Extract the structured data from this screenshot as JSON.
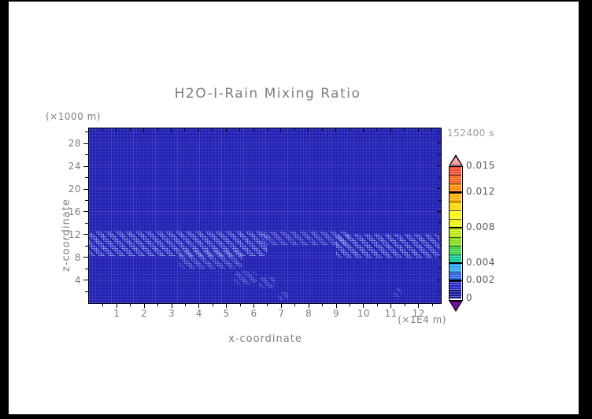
{
  "title": "H2O-I-Rain Mixing Ratio",
  "timestamp": "152400 s",
  "axes": {
    "x_label": "x-coordinate",
    "x_unit": "(×1E4 m)",
    "z_label": "z-coordinate",
    "z_unit": "(×1000 m)"
  },
  "colors": {
    "frame": "#000000",
    "canvas": "#ffffff",
    "field_background": "#2222b5",
    "speckle": "#acb6f0",
    "text_gray": "#7d7d7d"
  },
  "chart_data": {
    "type": "heatmap",
    "title": "H2O-I-Rain Mixing Ratio",
    "time_label": "152400 s",
    "xlabel": "x-coordinate",
    "x_unit": "(×1E4 m)",
    "ylabel": "z-coordinate",
    "z_unit": "(×1000 m)",
    "x_range": [
      0,
      12.8
    ],
    "z_range": [
      0,
      30.6
    ],
    "x_ticks": [
      1,
      2,
      3,
      4,
      5,
      6,
      7,
      8,
      9,
      10,
      11,
      12
    ],
    "x_tick_labels": [
      "1",
      "2",
      "3",
      "4",
      "5",
      "6",
      "7",
      "8",
      "9",
      "10",
      "11",
      "12"
    ],
    "x_minor_ticks": [
      0.5,
      1.5,
      2.5,
      3.5,
      4.5,
      5.5,
      6.5,
      7.5,
      8.5,
      9.5,
      10.5,
      11.5,
      12.5
    ],
    "z_ticks": [
      4,
      8,
      12,
      16,
      20,
      24,
      28
    ],
    "z_tick_labels": [
      "4",
      "8",
      "12",
      "16",
      "20",
      "24",
      "28"
    ],
    "z_minor_ticks": [
      2,
      6,
      10,
      14,
      18,
      22,
      26,
      30
    ],
    "grid": false,
    "field_summary": "Field is almost uniformly in the lowest contour band (0 to 0.001); a speckled trace-rain layer spans all x near z = 8-12.5 (x1000 m), with small trace patches below z = 6 near x = 5.3-7.3 and x = 11.1-11.4 (x1E4 m).",
    "rain_regions": [
      {
        "x": [
          0.0,
          6.5
        ],
        "z": [
          8.1,
          12.4
        ],
        "value_band": "0-0.001",
        "density": "dense"
      },
      {
        "x": [
          3.3,
          5.6
        ],
        "z": [
          5.9,
          9.2
        ],
        "value_band": "0-0.001",
        "density": "medium"
      },
      {
        "x": [
          6.3,
          9.5
        ],
        "z": [
          10.1,
          12.6
        ],
        "value_band": "0-0.001",
        "density": "medium"
      },
      {
        "x": [
          9.0,
          12.8
        ],
        "z": [
          7.9,
          12.1
        ],
        "value_band": "0-0.001",
        "density": "dense"
      },
      {
        "x": [
          5.3,
          6.1
        ],
        "z": [
          3.2,
          5.5
        ],
        "value_band": "0-0.001",
        "density": "light"
      },
      {
        "x": [
          6.2,
          6.8
        ],
        "z": [
          2.5,
          4.6
        ],
        "value_band": "0-0.001",
        "density": "light"
      },
      {
        "x": [
          6.9,
          7.3
        ],
        "z": [
          0.4,
          1.8
        ],
        "value_band": "0-0.001",
        "density": "light"
      },
      {
        "x": [
          11.1,
          11.4
        ],
        "z": [
          1.0,
          2.5
        ],
        "value_band": "0-0.001",
        "density": "light"
      }
    ],
    "colorbar": {
      "min": 0,
      "max": 0.015,
      "level_step": 0.001,
      "tick_values": [
        0.015,
        0.012,
        0.008,
        0.004,
        0.002,
        0
      ],
      "tick_labels": [
        "0.015",
        "0.012",
        "0.008",
        "0.004",
        "0.002",
        "0"
      ],
      "band_colors_bottom_to_top": [
        "#1a1a96",
        "#2626ce",
        "#2b62e8",
        "#2aa4f2",
        "#09c98e",
        "#3bd23c",
        "#84dc1e",
        "#bee80f",
        "#eef200",
        "#fbfb00",
        "#ffd400",
        "#ffac00",
        "#ff8a00",
        "#f9621a",
        "#f24a30"
      ],
      "above_max_color": "#f6a3a3",
      "below_min_color": "#6c12a0",
      "legend_position": "right"
    }
  }
}
